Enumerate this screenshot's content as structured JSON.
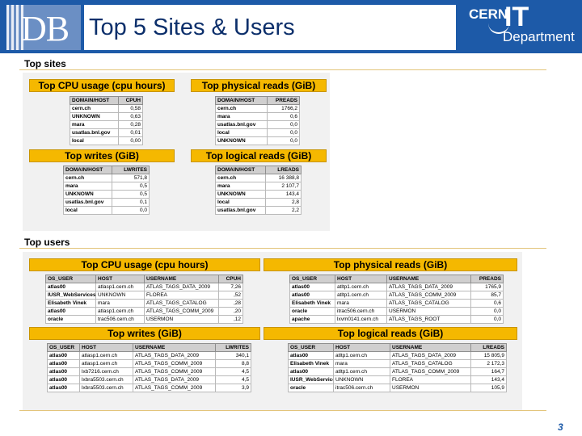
{
  "header": {
    "logo_text": "DB",
    "title": "Top 5 Sites & Users",
    "cern_text": "CERN",
    "it_text": "IT",
    "department_text": "Department"
  },
  "top_sites": {
    "label": "Top sites",
    "cpu": {
      "title": "Top CPU usage (cpu hours)",
      "columns": [
        "DOMAIN/HOST",
        "CPUH"
      ],
      "rows": [
        [
          "cern.ch",
          "0,58"
        ],
        [
          "UNKNOWN",
          "0,63"
        ],
        [
          "mara",
          "0,28"
        ],
        [
          "usatlas.bnl.gov",
          "0,01"
        ],
        [
          "local",
          "0,00"
        ]
      ]
    },
    "physical": {
      "title": "Top physical reads (GiB)",
      "columns": [
        "DOMAIN/HOST",
        "PREADS"
      ],
      "rows": [
        [
          "cern.ch",
          "1766,2"
        ],
        [
          "mara",
          "0,6"
        ],
        [
          "usatlas.bnl.gov",
          "0,0"
        ],
        [
          "local",
          "0,0"
        ],
        [
          "UNKNOWN",
          "0,0"
        ]
      ]
    },
    "writes": {
      "title": "Top writes (GiB)",
      "columns": [
        "DOMAIN/HOST",
        "LWRITES"
      ],
      "rows": [
        [
          "cern.ch",
          "571,8"
        ],
        [
          "mara",
          "0,5"
        ],
        [
          "UNKNOWN",
          "0,5"
        ],
        [
          "usatlas.bnl.gov",
          "0,1"
        ],
        [
          "local",
          "0,0"
        ]
      ]
    },
    "logical": {
      "title": "Top logical reads (GiB)",
      "columns": [
        "DOMAIN/HOST",
        "LREADS"
      ],
      "rows": [
        [
          "cern.ch",
          "16 388,8"
        ],
        [
          "mara",
          "2 107,7"
        ],
        [
          "UNKNOWN",
          "143,4"
        ],
        [
          "local",
          "2,8"
        ],
        [
          "usatlas.bnl.gov",
          "2,2"
        ]
      ]
    }
  },
  "top_users": {
    "label": "Top users",
    "cpu": {
      "title": "Top CPU usage (cpu hours)",
      "columns": [
        "OS_USER",
        "HOST",
        "USERNAME",
        "CPUH"
      ],
      "rows": [
        [
          "atlas00",
          "atlasp1.cern.ch",
          "ATLAS_TAGS_DATA_2009",
          "7,26"
        ],
        [
          "IUSR_WebServices",
          "UNKNOWN",
          "FLOREA",
          ",52"
        ],
        [
          "Elisabeth Vinek",
          "mara",
          "ATLAS_TAGS_CATALOG",
          ",28"
        ],
        [
          "atlas00",
          "atlasp1.cern.ch",
          "ATLAS_TAGS_COMM_2009",
          ",20"
        ],
        [
          "oracle",
          "trac506.cern.ch",
          "USERMON",
          ",12"
        ]
      ]
    },
    "physical": {
      "title": "Top physical reads (GiB)",
      "columns": [
        "OS_USER",
        "HOST",
        "USERNAME",
        "PREADS"
      ],
      "rows": [
        [
          "atlas00",
          "atltp1.cern.ch",
          "ATLAS_TAGS_DATA_2009",
          "1765,9"
        ],
        [
          "atlas00",
          "atltp1.cern.ch",
          "ATLAS_TAGS_COMM_2009",
          "85,7"
        ],
        [
          "Elisabeth Vinek",
          "mara",
          "ATLAS_TAGS_CATALOG",
          "0,6"
        ],
        [
          "oracle",
          "itrac506.cern.ch",
          "USERMON",
          "0,0"
        ],
        [
          "apache",
          "lxvm0141.cern.ch",
          "ATLAS_TAGS_ROOT",
          "0,0"
        ]
      ]
    },
    "writes": {
      "title": "Top writes (GiB)",
      "columns": [
        "OS_USER",
        "HOST",
        "USERNAME",
        "LWRITES"
      ],
      "rows": [
        [
          "atlas00",
          "atlasp1.cern.ch",
          "ATLAS_TAGS_DATA_2009",
          "340,1"
        ],
        [
          "atlas00",
          "atlasp1.cern.ch",
          "ATLAS_TAGS_COMM_2009",
          "8,8"
        ],
        [
          "atlas00",
          "lxb7216.cern.ch",
          "ATLAS_TAGS_COMM_2009",
          "4,5"
        ],
        [
          "atlas00",
          "lxbra5503.cern.ch",
          "ATLAS_TAGS_DATA_2009",
          "4,5"
        ],
        [
          "atlas00",
          "lxbra5503.cern.ch",
          "ATLAS_TAGS_COMM_2009",
          "3,9"
        ]
      ]
    },
    "logical": {
      "title": "Top logical reads (GiB)",
      "columns": [
        "OS_USER",
        "HOST",
        "USERNAME",
        "LREADS"
      ],
      "rows": [
        [
          "atlas00",
          "atltp1.cern.ch",
          "ATLAS_TAGS_DATA_2009",
          "15 805,9"
        ],
        [
          "Elisabeth Vinek",
          "mara",
          "ATLAS_TAGS_CATALOG",
          "2 172,3"
        ],
        [
          "atlas00",
          "atltp1.cern.ch",
          "ATLAS_TAGS_COMM_2009",
          "164,7"
        ],
        [
          "IUSR_WebServices",
          "UNKNOWN",
          "FLOREA",
          "143,4"
        ],
        [
          "oracle",
          "itrac506.cern.ch",
          "USERMON",
          "105,9"
        ]
      ]
    }
  },
  "slide_number": "3"
}
